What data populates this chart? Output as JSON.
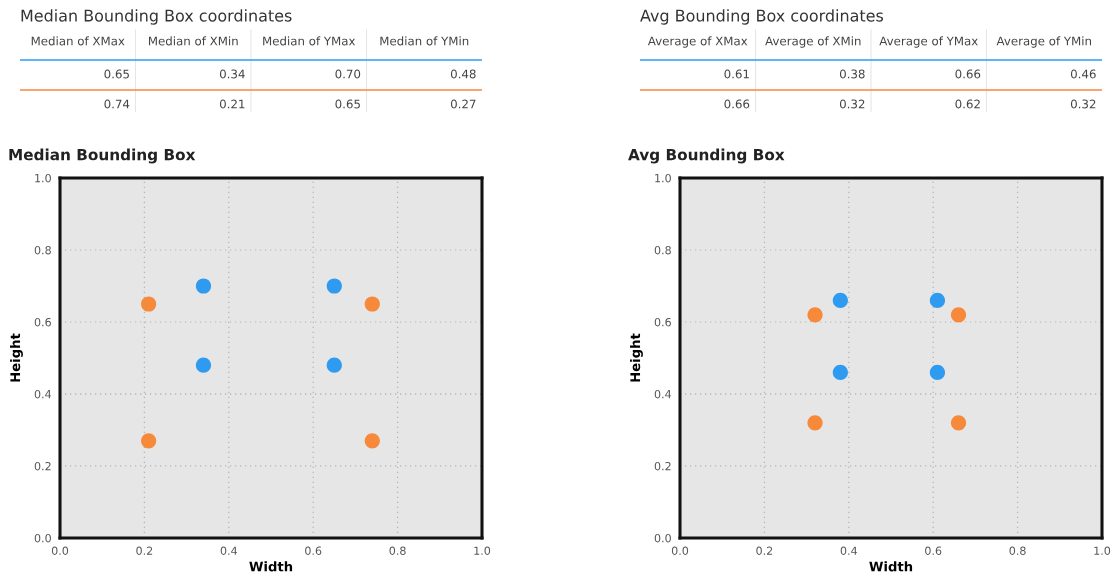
{
  "chart_data": [
    {
      "type": "other",
      "title": "Median Bounding Box coordinates",
      "categories": [
        "Median of XMax",
        "Median of XMin",
        "Median of YMax",
        "Median of YMin"
      ],
      "data_labels": true,
      "series": [
        {
          "color": "#2e9bf0",
          "values": [
            0.65,
            0.34,
            0.7,
            0.48
          ],
          "value_labels": [
            "0.65",
            "0.34",
            "0.70",
            "0.48"
          ]
        },
        {
          "color": "#f6893a",
          "values": [
            0.74,
            0.21,
            0.65,
            0.27
          ],
          "value_labels": [
            "0.74",
            "0.21",
            "0.65",
            "0.27"
          ]
        }
      ]
    },
    {
      "type": "other",
      "title": "Avg Bounding Box coordinates",
      "categories": [
        "Average of XMax",
        "Average of XMin",
        "Average of YMax",
        "Average of YMin"
      ],
      "data_labels": true,
      "series": [
        {
          "color": "#2e9bf0",
          "values": [
            0.61,
            0.38,
            0.66,
            0.46
          ],
          "value_labels": [
            "0.61",
            "0.38",
            "0.66",
            "0.46"
          ]
        },
        {
          "color": "#f6893a",
          "values": [
            0.66,
            0.32,
            0.62,
            0.32
          ],
          "value_labels": [
            "0.66",
            "0.32",
            "0.62",
            "0.32"
          ]
        }
      ]
    },
    {
      "type": "scatter",
      "title": "Median Bounding Box",
      "xlabel": "Width",
      "ylabel": "Height",
      "marker": "circle",
      "grid": true,
      "xlim": [
        0,
        1
      ],
      "ylim": [
        0,
        1
      ],
      "xticks": [
        {
          "value": 0,
          "label": "0.0"
        },
        {
          "value": 0.2,
          "label": "0.2"
        },
        {
          "value": 0.4,
          "label": "0.4"
        },
        {
          "value": 0.6,
          "label": "0.6"
        },
        {
          "value": 0.8,
          "label": "0.8"
        },
        {
          "value": 1,
          "label": "1.0"
        }
      ],
      "yticks": [
        {
          "value": 0,
          "label": "0.0"
        },
        {
          "value": 0.2,
          "label": "0.2"
        },
        {
          "value": 0.4,
          "label": "0.4"
        },
        {
          "value": 0.6,
          "label": "0.6"
        },
        {
          "value": 0.8,
          "label": "0.8"
        },
        {
          "value": 1,
          "label": "1.0"
        }
      ],
      "series": [
        {
          "color": "#2e9bf0",
          "x": [
            0.34,
            0.65,
            0.34,
            0.65
          ],
          "values": [
            0.7,
            0.7,
            0.48,
            0.48
          ]
        },
        {
          "color": "#f6893a",
          "x": [
            0.21,
            0.74,
            0.21,
            0.74
          ],
          "values": [
            0.65,
            0.65,
            0.27,
            0.27
          ]
        }
      ]
    },
    {
      "type": "scatter",
      "title": "Avg Bounding Box",
      "xlabel": "Width",
      "ylabel": "Height",
      "marker": "circle",
      "grid": true,
      "xlim": [
        0,
        1
      ],
      "ylim": [
        0,
        1
      ],
      "xticks": [
        {
          "value": 0,
          "label": "0.0"
        },
        {
          "value": 0.2,
          "label": "0.2"
        },
        {
          "value": 0.4,
          "label": "0.4"
        },
        {
          "value": 0.6,
          "label": "0.6"
        },
        {
          "value": 0.8,
          "label": "0.8"
        },
        {
          "value": 1,
          "label": "1.0"
        }
      ],
      "yticks": [
        {
          "value": 0,
          "label": "0.0"
        },
        {
          "value": 0.2,
          "label": "0.2"
        },
        {
          "value": 0.4,
          "label": "0.4"
        },
        {
          "value": 0.6,
          "label": "0.6"
        },
        {
          "value": 0.8,
          "label": "0.8"
        },
        {
          "value": 1,
          "label": "1.0"
        }
      ],
      "series": [
        {
          "color": "#2e9bf0",
          "x": [
            0.38,
            0.61,
            0.38,
            0.61
          ],
          "values": [
            0.66,
            0.66,
            0.46,
            0.46
          ]
        },
        {
          "color": "#f6893a",
          "x": [
            0.32,
            0.66,
            0.32,
            0.66
          ],
          "values": [
            0.62,
            0.62,
            0.32,
            0.32
          ]
        }
      ]
    }
  ]
}
